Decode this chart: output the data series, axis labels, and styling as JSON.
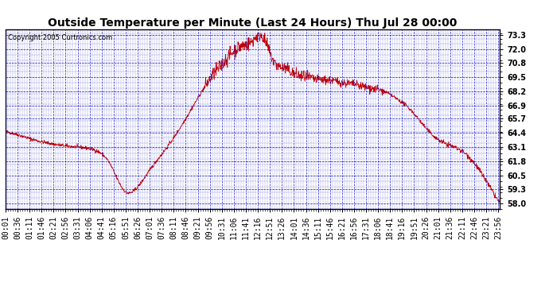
{
  "title": "Outside Temperature per Minute (Last 24 Hours) Thu Jul 28 00:00",
  "copyright": "Copyright 2005 Curtronics.com",
  "ylabel_right_ticks": [
    58.0,
    59.3,
    60.5,
    61.8,
    63.1,
    64.4,
    65.7,
    66.9,
    68.2,
    69.5,
    70.8,
    72.0,
    73.3
  ],
  "ymin": 57.5,
  "ymax": 73.8,
  "line_color": "#cc0000",
  "bg_color": "#ffffff",
  "grid_color": "#0000bb",
  "title_fontsize": 10,
  "tick_fontsize": 7,
  "copyright_fontsize": 6,
  "x_tick_labels": [
    "00:01",
    "00:36",
    "01:11",
    "01:46",
    "02:21",
    "02:56",
    "03:31",
    "04:06",
    "04:41",
    "05:16",
    "05:51",
    "06:26",
    "07:01",
    "07:36",
    "08:11",
    "08:46",
    "09:21",
    "09:56",
    "10:31",
    "11:06",
    "11:41",
    "12:16",
    "12:51",
    "13:26",
    "14:01",
    "14:36",
    "15:11",
    "15:46",
    "16:21",
    "16:56",
    "17:31",
    "18:06",
    "18:41",
    "19:16",
    "19:51",
    "20:26",
    "21:01",
    "21:36",
    "22:11",
    "22:46",
    "23:21",
    "23:56"
  ],
  "control_x": [
    0,
    40,
    80,
    120,
    180,
    240,
    280,
    300,
    351,
    380,
    420,
    480,
    540,
    600,
    640,
    680,
    720,
    746,
    760,
    780,
    820,
    840,
    870,
    900,
    940,
    980,
    1020,
    1060,
    1100,
    1140,
    1180,
    1220,
    1260,
    1300,
    1340,
    1380,
    1410,
    1439
  ],
  "control_y": [
    64.5,
    64.2,
    63.8,
    63.5,
    63.2,
    63.0,
    62.5,
    61.8,
    59.0,
    59.3,
    61.0,
    63.5,
    66.5,
    69.5,
    71.0,
    72.2,
    72.8,
    73.3,
    72.5,
    71.0,
    70.2,
    69.8,
    69.5,
    69.3,
    69.2,
    69.0,
    68.8,
    68.5,
    68.2,
    67.5,
    66.5,
    65.0,
    63.8,
    63.2,
    62.5,
    61.0,
    59.5,
    58.0
  ]
}
